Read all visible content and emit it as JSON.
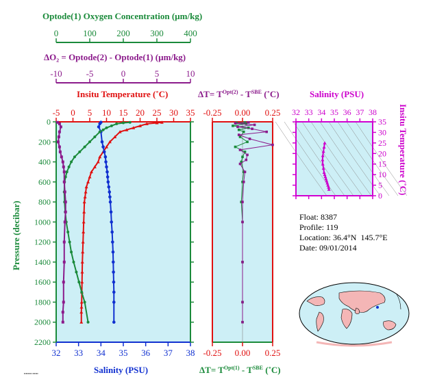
{
  "colors": {
    "oxygen": "#1a8a3a",
    "delta_o2": "#8b1a8b",
    "temperature": "#e01010",
    "salinity": "#1030d0",
    "magenta": "#cc00cc",
    "panel_bg": "#cdeff6",
    "axis_magenta": "#d000d0",
    "dt_red": "#e01010"
  },
  "top_axes": {
    "oxygen": {
      "title": "Optode(1) Oxygen Concentration (µm/kg)",
      "ticks": [
        "0",
        "100",
        "200",
        "300",
        "400"
      ]
    },
    "delta_o2": {
      "title": "ΔO₂ = Optode(2) - Optode(1)   (µm/kg)",
      "ticks": [
        "-10",
        "-5",
        "0",
        "5",
        "10"
      ]
    }
  },
  "info": {
    "float_label": "Float:",
    "float_value": "8387",
    "profile_label": "Profile:",
    "profile_value": "119",
    "location_label": "Location:",
    "location_value": "36.4°N  145.7°E",
    "date_label": "Date:",
    "date_value": "09/01/2014"
  },
  "chart_data": [
    {
      "type": "line",
      "panel": "main",
      "ylabel": "Pressure (decibar)",
      "ylim": [
        2200,
        0
      ],
      "yticks": [
        "0",
        "200",
        "400",
        "600",
        "800",
        "1000",
        "1200",
        "1400",
        "1600",
        "1800",
        "2000",
        "2200"
      ],
      "xaxes": {
        "temperature": {
          "label": "Insitu Temperature (˚C)",
          "range": [
            -5,
            35
          ],
          "ticks": [
            "-5",
            "0",
            "5",
            "10",
            "15",
            "20",
            "25",
            "30",
            "35"
          ]
        },
        "salinity": {
          "label": "Salinity (PSU)",
          "range": [
            32,
            38
          ],
          "ticks": [
            "32",
            "33",
            "34",
            "35",
            "36",
            "37",
            "38"
          ]
        },
        "oxygen": {
          "range": [
            0,
            400
          ]
        },
        "delta_o2": {
          "range": [
            -10,
            10
          ]
        }
      },
      "series": [
        {
          "name": "temperature",
          "axis": "temperature",
          "x": [
            26.5,
            25,
            22,
            20,
            18,
            16,
            14,
            12.5,
            11,
            10,
            9,
            8,
            7.5,
            6.5,
            5.5,
            5,
            4.5,
            4,
            3.8,
            3.6,
            3.4,
            3.3,
            3.2,
            3.1,
            3.0,
            2.9,
            2.8,
            2.75,
            2.7,
            2.65,
            2.6,
            2.55,
            2.5,
            2.5
          ],
          "y": [
            5,
            10,
            20,
            40,
            60,
            80,
            100,
            150,
            200,
            250,
            300,
            350,
            400,
            450,
            500,
            550,
            600,
            650,
            700,
            750,
            800,
            900,
            1000,
            1100,
            1200,
            1300,
            1400,
            1500,
            1600,
            1700,
            1800,
            1850,
            1900,
            2000
          ]
        },
        {
          "name": "salinity",
          "axis": "salinity",
          "x": [
            34.0,
            33.95,
            33.9,
            34.0,
            34.05,
            34.1,
            34.15,
            34.2,
            34.22,
            34.25,
            34.28,
            34.3,
            34.32,
            34.35,
            34.38,
            34.4,
            34.42,
            34.45,
            34.47,
            34.5,
            34.52,
            34.54,
            34.55,
            34.56,
            34.57,
            34.58,
            34.58,
            34.58
          ],
          "y": [
            5,
            20,
            50,
            100,
            200,
            250,
            300,
            350,
            400,
            450,
            500,
            550,
            600,
            650,
            700,
            750,
            800,
            900,
            1000,
            1100,
            1200,
            1300,
            1400,
            1500,
            1600,
            1700,
            1800,
            2000
          ]
        },
        {
          "name": "oxygen",
          "axis": "oxygen",
          "x": [
            220,
            200,
            180,
            165,
            150,
            140,
            130,
            115,
            100,
            85,
            70,
            55,
            45,
            38,
            32,
            28,
            25,
            24,
            25,
            27,
            30,
            35,
            40,
            45,
            52,
            60,
            68,
            76,
            85,
            95
          ],
          "y": [
            5,
            10,
            20,
            40,
            60,
            80,
            100,
            150,
            200,
            250,
            300,
            350,
            400,
            450,
            500,
            550,
            600,
            700,
            800,
            900,
            1000,
            1100,
            1200,
            1300,
            1400,
            1500,
            1600,
            1700,
            1800,
            2000
          ]
        },
        {
          "name": "delta_o2",
          "axis": "delta_o2",
          "x": [
            -9.8,
            -9.5,
            -9.3,
            -9.5,
            -9.6,
            -9.7,
            -9.5,
            -9.4,
            -9.2,
            -9.0,
            -8.9,
            -8.8,
            -8.8,
            -8.7,
            -8.6,
            -8.6,
            -8.7,
            -8.8,
            -8.8,
            -8.9,
            -8.9,
            -9.0,
            -9.0
          ],
          "y": [
            5,
            20,
            50,
            100,
            150,
            200,
            250,
            300,
            350,
            400,
            450,
            500,
            600,
            700,
            800,
            900,
            1000,
            1200,
            1400,
            1600,
            1800,
            1900,
            2000
          ]
        }
      ]
    },
    {
      "type": "scatter",
      "panel": "delta_t",
      "top_label": "ΔT= T^Opt(2) - T^SBE (˚C)",
      "bottom_label": "ΔT= T^Opt(1) - T^SBE (˚C)",
      "xlim": [
        -0.25,
        0.25
      ],
      "xticks": [
        "-0.25",
        "0.00",
        "0.25"
      ],
      "series": [
        {
          "name": "dT_opt1",
          "x": [
            0.02,
            -0.05,
            0.03,
            -0.08,
            0.05,
            -0.03,
            0.01,
            -0.02,
            0.04,
            -0.06,
            0.02,
            0.0,
            -0.01,
            0.01,
            0.0,
            -0.01,
            0.0,
            0.0,
            0.0,
            0.0
          ],
          "y": [
            5,
            10,
            20,
            40,
            60,
            80,
            100,
            150,
            200,
            250,
            300,
            350,
            400,
            500,
            600,
            800,
            1000,
            1400,
            1800,
            2000
          ]
        },
        {
          "name": "dT_opt2",
          "x": [
            0.05,
            -0.06,
            0.1,
            -0.04,
            0.08,
            0.2,
            -0.03,
            0.06,
            0.25,
            -0.02,
            0.04,
            0.03,
            -0.02,
            0.02,
            0.01,
            0.0,
            0.0,
            0.0,
            0.0,
            0.0
          ],
          "y": [
            5,
            15,
            30,
            50,
            70,
            100,
            130,
            170,
            230,
            280,
            330,
            380,
            420,
            500,
            600,
            800,
            1000,
            1400,
            1800,
            2000
          ]
        }
      ]
    },
    {
      "type": "scatter",
      "panel": "ts",
      "title": "Salinity (PSU)",
      "ylabel": "Insitu Temperature (˚C)",
      "xlim": [
        32,
        38
      ],
      "ylim": [
        0,
        35
      ],
      "xticks": [
        "32",
        "33",
        "34",
        "35",
        "36",
        "37",
        "38"
      ],
      "yticks": [
        "0",
        "5",
        "10",
        "15",
        "20",
        "25",
        "30",
        "35"
      ],
      "series": [
        {
          "name": "ts_profile",
          "x": [
            34.25,
            34.2,
            34.15,
            34.1,
            34.08,
            34.1,
            34.15,
            34.2,
            34.25,
            34.3,
            34.35,
            34.4,
            34.45,
            34.5,
            34.55,
            34.58
          ],
          "y": [
            25,
            23,
            21,
            19,
            17,
            15,
            13,
            11,
            10,
            9,
            8,
            7,
            6,
            5,
            4,
            3
          ]
        }
      ]
    }
  ],
  "map": {
    "description_icon": "world-map-icon"
  }
}
